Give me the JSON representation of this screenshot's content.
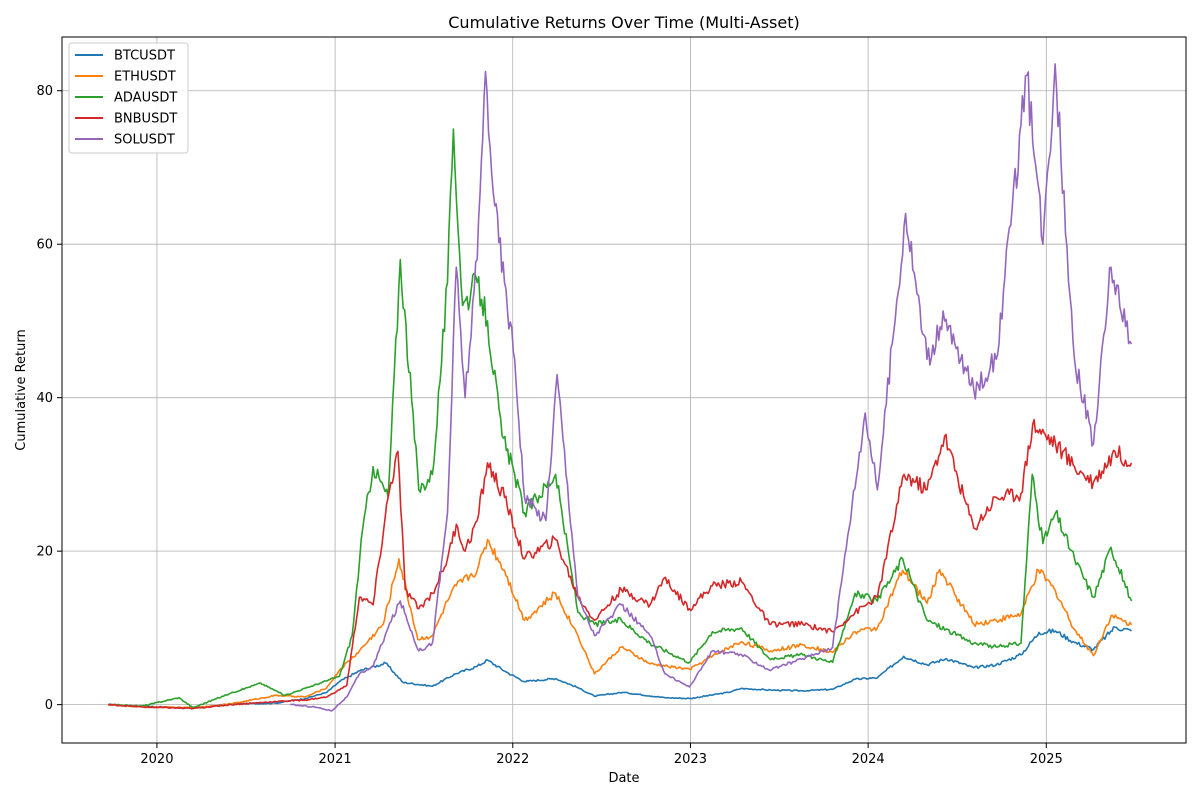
{
  "chart_data": {
    "type": "line",
    "title": "Cumulative Returns Over Time (Multi-Asset)",
    "xlabel": "Date",
    "ylabel": "Cumulative Return",
    "xlim": [
      "2019-06-20",
      "2025-10-15"
    ],
    "ylim": [
      -5,
      87
    ],
    "x_ticks": [
      "2020",
      "2021",
      "2022",
      "2023",
      "2024",
      "2025"
    ],
    "y_ticks": [
      0,
      20,
      40,
      60,
      80
    ],
    "grid": true,
    "legend_position": "top-left",
    "series": [
      {
        "name": "BTCUSDT",
        "color": "#1f77b4",
        "points": [
          [
            "2019-09-23",
            0.0
          ],
          [
            "2019-12-01",
            -0.2
          ],
          [
            "2020-03-15",
            -0.5
          ],
          [
            "2020-06-01",
            0.1
          ],
          [
            "2020-09-01",
            0.2
          ],
          [
            "2020-11-01",
            0.8
          ],
          [
            "2020-12-15",
            1.6
          ],
          [
            "2021-01-10",
            3.0
          ],
          [
            "2021-02-20",
            4.4
          ],
          [
            "2021-04-15",
            5.4
          ],
          [
            "2021-05-20",
            2.9
          ],
          [
            "2021-07-20",
            2.4
          ],
          [
            "2021-09-05",
            4.0
          ],
          [
            "2021-10-20",
            5.0
          ],
          [
            "2021-11-10",
            5.8
          ],
          [
            "2021-12-20",
            4.2
          ],
          [
            "2022-01-25",
            3.0
          ],
          [
            "2022-03-30",
            3.4
          ],
          [
            "2022-05-15",
            2.2
          ],
          [
            "2022-06-18",
            1.1
          ],
          [
            "2022-08-15",
            1.6
          ],
          [
            "2022-11-10",
            0.9
          ],
          [
            "2023-01-01",
            0.8
          ],
          [
            "2023-03-20",
            1.6
          ],
          [
            "2023-04-15",
            2.1
          ],
          [
            "2023-06-15",
            1.9
          ],
          [
            "2023-08-20",
            1.8
          ],
          [
            "2023-10-20",
            2.0
          ],
          [
            "2023-12-05",
            3.3
          ],
          [
            "2024-01-20",
            3.5
          ],
          [
            "2024-03-14",
            6.3
          ],
          [
            "2024-05-01",
            5.2
          ],
          [
            "2024-06-10",
            6.0
          ],
          [
            "2024-08-05",
            4.8
          ],
          [
            "2024-09-20",
            5.2
          ],
          [
            "2024-11-10",
            6.5
          ],
          [
            "2024-12-17",
            9.4
          ],
          [
            "2025-01-20",
            9.6
          ],
          [
            "2025-02-28",
            8.1
          ],
          [
            "2025-04-08",
            7.2
          ],
          [
            "2025-05-22",
            10.1
          ],
          [
            "2025-06-25",
            9.6
          ]
        ]
      },
      {
        "name": "ETHUSDT",
        "color": "#ff7f0e",
        "points": [
          [
            "2019-09-23",
            0.0
          ],
          [
            "2019-12-01",
            -0.3
          ],
          [
            "2020-03-15",
            -0.4
          ],
          [
            "2020-06-01",
            0.1
          ],
          [
            "2020-09-01",
            1.2
          ],
          [
            "2020-11-01",
            1.0
          ],
          [
            "2020-12-15",
            2.2
          ],
          [
            "2021-01-10",
            4.5
          ],
          [
            "2021-02-20",
            7.0
          ],
          [
            "2021-04-10",
            10.5
          ],
          [
            "2021-05-12",
            19.0
          ],
          [
            "2021-06-20",
            8.5
          ],
          [
            "2021-07-20",
            9.0
          ],
          [
            "2021-08-20",
            13.5
          ],
          [
            "2021-09-07",
            15.5
          ],
          [
            "2021-10-20",
            17.5
          ],
          [
            "2021-11-10",
            21.5
          ],
          [
            "2021-12-15",
            17.5
          ],
          [
            "2022-01-25",
            11.0
          ],
          [
            "2022-03-30",
            14.5
          ],
          [
            "2022-05-15",
            9.0
          ],
          [
            "2022-06-18",
            4.0
          ],
          [
            "2022-08-12",
            7.5
          ],
          [
            "2022-10-10",
            5.3
          ],
          [
            "2022-12-30",
            4.6
          ],
          [
            "2023-03-01",
            6.8
          ],
          [
            "2023-04-16",
            8.2
          ],
          [
            "2023-06-15",
            7.0
          ],
          [
            "2023-08-20",
            7.8
          ],
          [
            "2023-10-20",
            6.8
          ],
          [
            "2023-12-05",
            9.5
          ],
          [
            "2024-01-20",
            10.0
          ],
          [
            "2024-03-12",
            17.5
          ],
          [
            "2024-05-01",
            13.2
          ],
          [
            "2024-05-27",
            17.6
          ],
          [
            "2024-08-05",
            10.5
          ],
          [
            "2024-09-20",
            11.0
          ],
          [
            "2024-11-10",
            11.8
          ],
          [
            "2024-12-16",
            17.5
          ],
          [
            "2025-01-20",
            14.8
          ],
          [
            "2025-02-28",
            9.8
          ],
          [
            "2025-04-08",
            6.4
          ],
          [
            "2025-05-14",
            11.6
          ],
          [
            "2025-06-25",
            10.4
          ]
        ]
      },
      {
        "name": "ADAUSDT",
        "color": "#2ca02c",
        "points": [
          [
            "2019-09-23",
            0.0
          ],
          [
            "2019-12-01",
            -0.2
          ],
          [
            "2020-02-15",
            0.9
          ],
          [
            "2020-03-15",
            -0.4
          ],
          [
            "2020-06-01",
            1.5
          ],
          [
            "2020-08-01",
            2.8
          ],
          [
            "2020-09-20",
            1.2
          ],
          [
            "2020-12-01",
            2.8
          ],
          [
            "2021-01-10",
            3.7
          ],
          [
            "2021-02-05",
            9.0
          ],
          [
            "2021-02-27",
            23.0
          ],
          [
            "2021-03-20",
            31.0
          ],
          [
            "2021-04-20",
            27.0
          ],
          [
            "2021-05-15",
            58.0
          ],
          [
            "2021-06-22",
            28.0
          ],
          [
            "2021-07-20",
            30.0
          ],
          [
            "2021-08-20",
            55.0
          ],
          [
            "2021-09-01",
            75.0
          ],
          [
            "2021-09-20",
            52.0
          ],
          [
            "2021-10-20",
            55.0
          ],
          [
            "2021-11-10",
            50.0
          ],
          [
            "2021-12-10",
            35.0
          ],
          [
            "2022-01-05",
            30.0
          ],
          [
            "2022-01-25",
            25.0
          ],
          [
            "2022-03-30",
            30.0
          ],
          [
            "2022-05-15",
            12.0
          ],
          [
            "2022-06-18",
            10.5
          ],
          [
            "2022-08-12",
            11.0
          ],
          [
            "2022-10-10",
            8.0
          ],
          [
            "2022-12-30",
            5.5
          ],
          [
            "2023-02-15",
            9.5
          ],
          [
            "2023-04-16",
            10.0
          ],
          [
            "2023-06-12",
            6.0
          ],
          [
            "2023-08-20",
            6.5
          ],
          [
            "2023-10-20",
            5.5
          ],
          [
            "2023-12-05",
            14.5
          ],
          [
            "2024-01-20",
            13.5
          ],
          [
            "2024-03-12",
            19.0
          ],
          [
            "2024-05-01",
            11.0
          ],
          [
            "2024-08-05",
            8.0
          ],
          [
            "2024-09-20",
            7.5
          ],
          [
            "2024-11-10",
            8.0
          ],
          [
            "2024-12-03",
            30.0
          ],
          [
            "2024-12-25",
            21.0
          ],
          [
            "2025-01-20",
            25.0
          ],
          [
            "2025-02-28",
            19.0
          ],
          [
            "2025-04-08",
            14.0
          ],
          [
            "2025-05-14",
            20.5
          ],
          [
            "2025-06-25",
            13.5
          ]
        ]
      },
      {
        "name": "BNBUSDT",
        "color": "#d62728",
        "points": [
          [
            "2019-09-23",
            0.0
          ],
          [
            "2019-12-01",
            -0.3
          ],
          [
            "2020-03-15",
            -0.5
          ],
          [
            "2020-06-01",
            0.0
          ],
          [
            "2020-09-01",
            0.4
          ],
          [
            "2020-11-01",
            0.6
          ],
          [
            "2020-12-15",
            1.0
          ],
          [
            "2021-01-25",
            2.5
          ],
          [
            "2021-02-20",
            14.0
          ],
          [
            "2021-03-20",
            13.0
          ],
          [
            "2021-04-20",
            27.0
          ],
          [
            "2021-05-10",
            33.0
          ],
          [
            "2021-05-25",
            15.0
          ],
          [
            "2021-06-22",
            12.5
          ],
          [
            "2021-07-20",
            14.5
          ],
          [
            "2021-08-20",
            19.0
          ],
          [
            "2021-09-07",
            23.5
          ],
          [
            "2021-09-25",
            20.0
          ],
          [
            "2021-10-20",
            24.0
          ],
          [
            "2021-11-10",
            31.5
          ],
          [
            "2021-12-15",
            27.0
          ],
          [
            "2022-01-25",
            19.0
          ],
          [
            "2022-03-30",
            21.5
          ],
          [
            "2022-05-15",
            14.0
          ],
          [
            "2022-06-18",
            11.0
          ],
          [
            "2022-08-12",
            15.0
          ],
          [
            "2022-10-10",
            13.0
          ],
          [
            "2022-11-08",
            16.5
          ],
          [
            "2022-12-30",
            12.5
          ],
          [
            "2023-02-15",
            15.5
          ],
          [
            "2023-04-16",
            16.0
          ],
          [
            "2023-06-12",
            10.5
          ],
          [
            "2023-08-20",
            10.5
          ],
          [
            "2023-10-20",
            9.5
          ],
          [
            "2023-12-05",
            12.0
          ],
          [
            "2024-01-20",
            14.0
          ],
          [
            "2024-03-15",
            30.0
          ],
          [
            "2024-05-01",
            28.0
          ],
          [
            "2024-06-06",
            35.0
          ],
          [
            "2024-08-05",
            23.0
          ],
          [
            "2024-09-20",
            27.0
          ],
          [
            "2024-11-10",
            27.5
          ],
          [
            "2024-12-04",
            36.5
          ],
          [
            "2025-01-20",
            34.0
          ],
          [
            "2025-02-28",
            31.0
          ],
          [
            "2025-04-08",
            29.0
          ],
          [
            "2025-05-22",
            33.0
          ],
          [
            "2025-06-25",
            31.5
          ]
        ]
      },
      {
        "name": "SOLUSDT",
        "color": "#9467bd",
        "points": [
          [
            "2020-10-01",
            0.0
          ],
          [
            "2020-11-20",
            -0.3
          ],
          [
            "2020-12-25",
            -0.8
          ],
          [
            "2021-01-25",
            1.0
          ],
          [
            "2021-02-20",
            4.0
          ],
          [
            "2021-03-20",
            5.0
          ],
          [
            "2021-04-20",
            10.0
          ],
          [
            "2021-05-15",
            13.5
          ],
          [
            "2021-06-22",
            7.0
          ],
          [
            "2021-07-20",
            8.0
          ],
          [
            "2021-08-20",
            25.0
          ],
          [
            "2021-09-07",
            57.0
          ],
          [
            "2021-09-25",
            40.0
          ],
          [
            "2021-10-20",
            58.0
          ],
          [
            "2021-11-06",
            82.5
          ],
          [
            "2021-11-25",
            65.0
          ],
          [
            "2021-12-15",
            55.0
          ],
          [
            "2022-01-05",
            45.0
          ],
          [
            "2022-01-25",
            27.0
          ],
          [
            "2022-03-10",
            24.0
          ],
          [
            "2022-04-02",
            43.0
          ],
          [
            "2022-05-15",
            14.0
          ],
          [
            "2022-06-18",
            9.0
          ],
          [
            "2022-08-12",
            13.0
          ],
          [
            "2022-10-10",
            9.0
          ],
          [
            "2022-11-10",
            4.0
          ],
          [
            "2022-12-30",
            2.3
          ],
          [
            "2023-02-15",
            7.0
          ],
          [
            "2023-04-16",
            6.5
          ],
          [
            "2023-06-12",
            4.5
          ],
          [
            "2023-08-20",
            6.0
          ],
          [
            "2023-10-20",
            7.5
          ],
          [
            "2023-11-20",
            22.0
          ],
          [
            "2023-12-26",
            38.0
          ],
          [
            "2024-01-20",
            28.0
          ],
          [
            "2024-03-18",
            64.0
          ],
          [
            "2024-05-01",
            45.0
          ],
          [
            "2024-06-06",
            50.0
          ],
          [
            "2024-08-05",
            41.0
          ],
          [
            "2024-09-20",
            45.0
          ],
          [
            "2024-11-22",
            82.0
          ],
          [
            "2024-12-25",
            60.0
          ],
          [
            "2025-01-19",
            83.5
          ],
          [
            "2025-02-28",
            45.0
          ],
          [
            "2025-04-08",
            34.0
          ],
          [
            "2025-05-14",
            57.0
          ],
          [
            "2025-06-25",
            47.0
          ]
        ]
      }
    ]
  }
}
